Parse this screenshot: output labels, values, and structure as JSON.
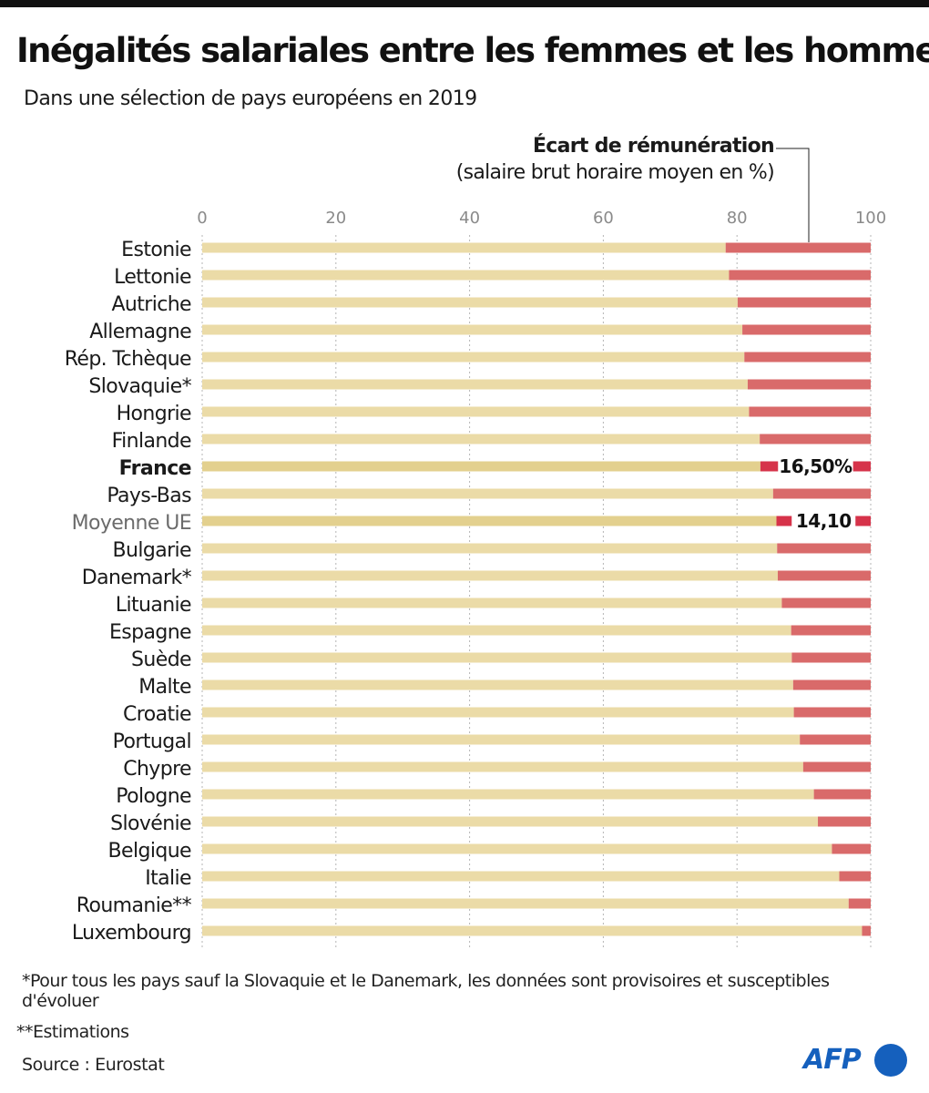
{
  "title": "Inégalités salariales entre les femmes et les hommes",
  "subtitle": "Dans une sélection de pays européens en 2019",
  "legend": {
    "title": "Écart de rémunération",
    "subtitle": "(salaire brut horaire moyen en %)"
  },
  "colors": {
    "women_bar": "#ebdba7",
    "highlight_bar": "#e3d08e",
    "gap_bar": "#d96a6a",
    "highlight_gap": "#d6334a",
    "grid": "#b5b5b5",
    "axis_text": "#8a8a8a",
    "logo": "#1560bd"
  },
  "chart_data": {
    "type": "bar",
    "orientation": "horizontal",
    "stacked": true,
    "xlim": [
      0,
      100
    ],
    "xticks": [
      "0",
      "20",
      "40",
      "60",
      "80",
      "100"
    ],
    "grid": true,
    "categories": [
      "Estonie",
      "Lettonie",
      "Autriche",
      "Allemagne",
      "Rép. Tchèque",
      "Slovaquie*",
      "Hongrie",
      "Finlande",
      "France",
      "Pays-Bas",
      "Moyenne UE",
      "Bulgarie",
      "Danemark*",
      "Lituanie",
      "Espagne",
      "Suède",
      "Malte",
      "Croatie",
      "Portugal",
      "Chypre",
      "Pologne",
      "Slovénie",
      "Belgique",
      "Italie",
      "Roumanie**",
      "Luxembourg"
    ],
    "gap_values": [
      21.7,
      21.2,
      19.9,
      19.2,
      18.9,
      18.4,
      18.2,
      16.6,
      16.5,
      14.6,
      14.1,
      14.0,
      13.9,
      13.3,
      11.9,
      11.8,
      11.6,
      11.5,
      10.6,
      10.1,
      8.5,
      7.9,
      5.8,
      4.7,
      3.3,
      1.3
    ],
    "highlight": [
      "France",
      "Moyenne UE"
    ],
    "muted_labels": [
      "Moyenne UE"
    ],
    "data_labels": {
      "France": "16,50%",
      "Moyenne UE": "14,10"
    }
  },
  "footnotes": {
    "note1": "*Pour tous les pays sauf la Slovaquie et le Danemark, les données sont provisoires et susceptibles d'évoluer",
    "note2": "**Estimations",
    "source": "Source : Eurostat"
  },
  "logo": {
    "text": "AFP",
    "icon": "afp-logo-dot"
  }
}
